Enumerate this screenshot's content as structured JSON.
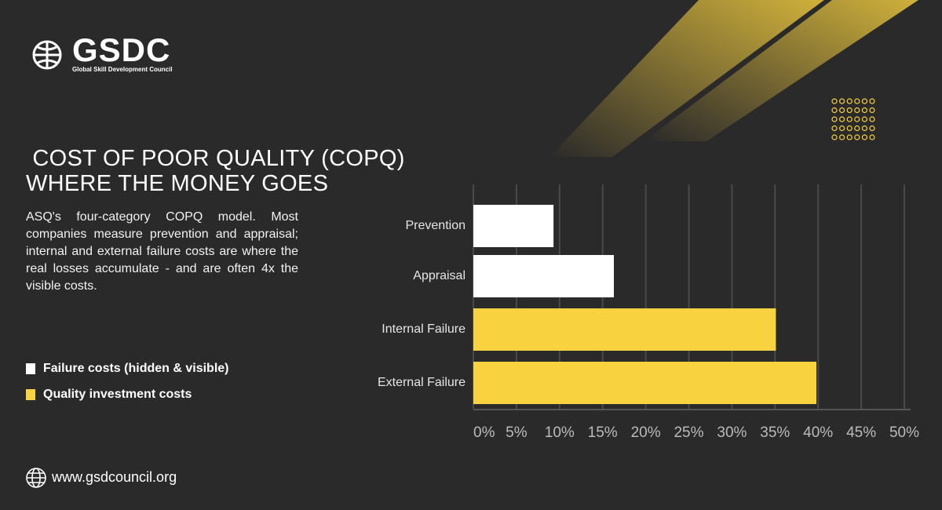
{
  "brand": {
    "logo": "GSDC",
    "tagline": "Global Skill Development Council",
    "website": "www.gsdcouncil.org"
  },
  "title_line1": " COST OF POOR QUALITY (COPQ)",
  "title_line2": "WHERE THE MONEY GOES",
  "description": "ASQ's four-category COPQ model. Most companies measure prevention and appraisal; internal and external failure costs are where the real losses accumulate - and are often 4x the visible costs.",
  "chart_data": {
    "type": "hbar",
    "categories": [
      "Prevention",
      "Appraisal",
      "Internal Failure",
      "External Failure"
    ],
    "series": [
      {
        "name": "Failure costs (hidden & visible)",
        "color": "#ffffff",
        "values": [
          9.3,
          16.3,
          null,
          null
        ]
      },
      {
        "name": "Quality investment costs",
        "color": "#f9d23f",
        "values": [
          null,
          null,
          35.1,
          39.8
        ]
      }
    ],
    "xlim": [
      0,
      50
    ],
    "xticks": [
      {
        "value": 0,
        "label": "0%"
      },
      {
        "value": 5,
        "label": "5%"
      },
      {
        "value": 10,
        "label": "10%"
      },
      {
        "value": 15,
        "label": "15%"
      },
      {
        "value": 20,
        "label": "20%"
      },
      {
        "value": 25,
        "label": "25%"
      },
      {
        "value": 30,
        "label": "30%"
      },
      {
        "value": 35,
        "label": "35%"
      },
      {
        "value": 40,
        "label": "40%"
      },
      {
        "value": 45,
        "label": "45%"
      },
      {
        "value": 50,
        "label": "50%"
      }
    ],
    "grid": true
  }
}
